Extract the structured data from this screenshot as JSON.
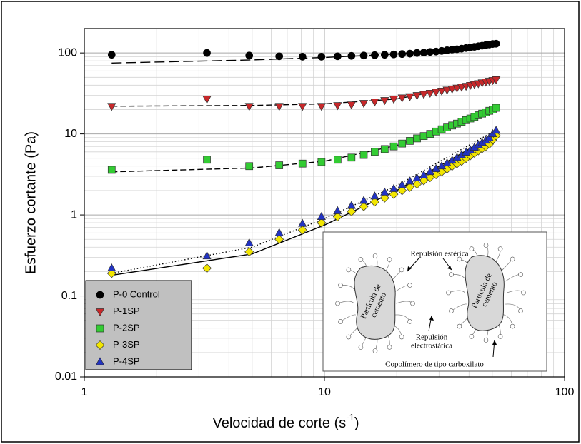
{
  "chart_data": {
    "type": "scatter",
    "x_label": {
      "text": "Velocidad de corte (s",
      "sup": "-1",
      "close": ")"
    },
    "y_label": "Esfuerzo cortante (Pa)",
    "x_scale": "log",
    "y_scale": "log",
    "xlim": [
      1,
      100
    ],
    "xticks": [
      1,
      10,
      100
    ],
    "ylim": [
      0.01,
      200
    ],
    "yticks": [
      0.01,
      0.1,
      1,
      10,
      100
    ],
    "grid": true,
    "minor_grid": true,
    "legend_position": "lower left",
    "x": [
      1.3,
      3.24,
      4.86,
      6.48,
      8.1,
      9.72,
      11.34,
      12.96,
      14.58,
      16.2,
      17.82,
      19.44,
      21.06,
      22.68,
      24.3,
      25.92,
      27.54,
      29.16,
      30.78,
      32.4,
      34.02,
      35.64,
      37.26,
      38.88,
      40.5,
      42.12,
      43.74,
      45.36,
      46.98,
      48.6,
      50.22,
      51.84
    ],
    "series": [
      {
        "name": "P-0 Control",
        "color": "#000000",
        "marker": "circle",
        "values": [
          95,
          100,
          93,
          91,
          90,
          90,
          91,
          92,
          93,
          94,
          95,
          96,
          97,
          98,
          100,
          101,
          103,
          104,
          106,
          108,
          110,
          111,
          113,
          115,
          117,
          119,
          121,
          123,
          125,
          127,
          129,
          130
        ]
      },
      {
        "name": "P-1SP",
        "color": "#c8282a",
        "marker": "triangle-down",
        "values": [
          22,
          27,
          22,
          22,
          22,
          22,
          22.5,
          23,
          24,
          25,
          26,
          27,
          28,
          29,
          30,
          31,
          32,
          33,
          34,
          35,
          36,
          37,
          38,
          39,
          40,
          41,
          42,
          43,
          44,
          45,
          46,
          47
        ]
      },
      {
        "name": "P-2SP",
        "color": "#33cc33",
        "marker": "square",
        "values": [
          3.6,
          4.8,
          4.0,
          4.1,
          4.3,
          4.5,
          4.8,
          5.1,
          5.5,
          6,
          6.5,
          7,
          7.6,
          8.2,
          8.8,
          9.4,
          10,
          10.7,
          11.4,
          12,
          12.7,
          13.4,
          14.1,
          14.8,
          15.5,
          16.2,
          17,
          17.8,
          18.5,
          19.3,
          20,
          21
        ]
      },
      {
        "name": "P-3SP",
        "color": "#f2e600",
        "marker": "diamond",
        "values": [
          0.19,
          0.22,
          0.35,
          0.5,
          0.65,
          0.8,
          0.95,
          1.1,
          1.27,
          1.45,
          1.62,
          1.8,
          2.0,
          2.2,
          2.4,
          2.65,
          2.9,
          3.15,
          3.4,
          3.7,
          4.0,
          4.3,
          4.6,
          5.0,
          5.4,
          5.8,
          6.2,
          6.6,
          7.0,
          7.5,
          8.5,
          9.5
        ]
      },
      {
        "name": "P-4SP",
        "color": "#2233c4",
        "marker": "triangle-up",
        "values": [
          0.22,
          0.31,
          0.45,
          0.6,
          0.78,
          0.95,
          1.12,
          1.3,
          1.5,
          1.7,
          1.9,
          2.1,
          2.35,
          2.6,
          2.85,
          3.1,
          3.4,
          3.7,
          4.0,
          4.35,
          4.7,
          5.1,
          5.5,
          5.9,
          6.3,
          6.8,
          7.3,
          7.8,
          8.3,
          8.9,
          10,
          11
        ]
      }
    ],
    "fits": [
      {
        "style": "long-dashed",
        "x": [
          1.3,
          5,
          10,
          20,
          50
        ],
        "values": [
          75,
          82,
          88,
          97,
          128
        ]
      },
      {
        "style": "dashed",
        "x": [
          1.3,
          5,
          10,
          20,
          50
        ],
        "values": [
          22,
          22.5,
          23.5,
          27,
          46
        ]
      },
      {
        "style": "dashed",
        "x": [
          1.3,
          5,
          10,
          20,
          50
        ],
        "values": [
          3.4,
          3.8,
          4.6,
          7.2,
          20
        ]
      },
      {
        "style": "solid",
        "x": [
          1.3,
          5,
          10,
          20,
          50
        ],
        "values": [
          0.18,
          0.33,
          0.75,
          2.0,
          9.5
        ]
      },
      {
        "style": "dotted",
        "x": [
          1.3,
          5,
          10,
          20,
          50
        ],
        "values": [
          0.19,
          0.4,
          0.9,
          2.3,
          10.5
        ]
      }
    ]
  },
  "inset": {
    "labels": [
      "Repulsión estérica",
      "Partícula de",
      "cemento",
      "Partícula de",
      "cemento",
      "Repulsión",
      "electrostática",
      "Copolímero de tipo carboxilato"
    ]
  }
}
